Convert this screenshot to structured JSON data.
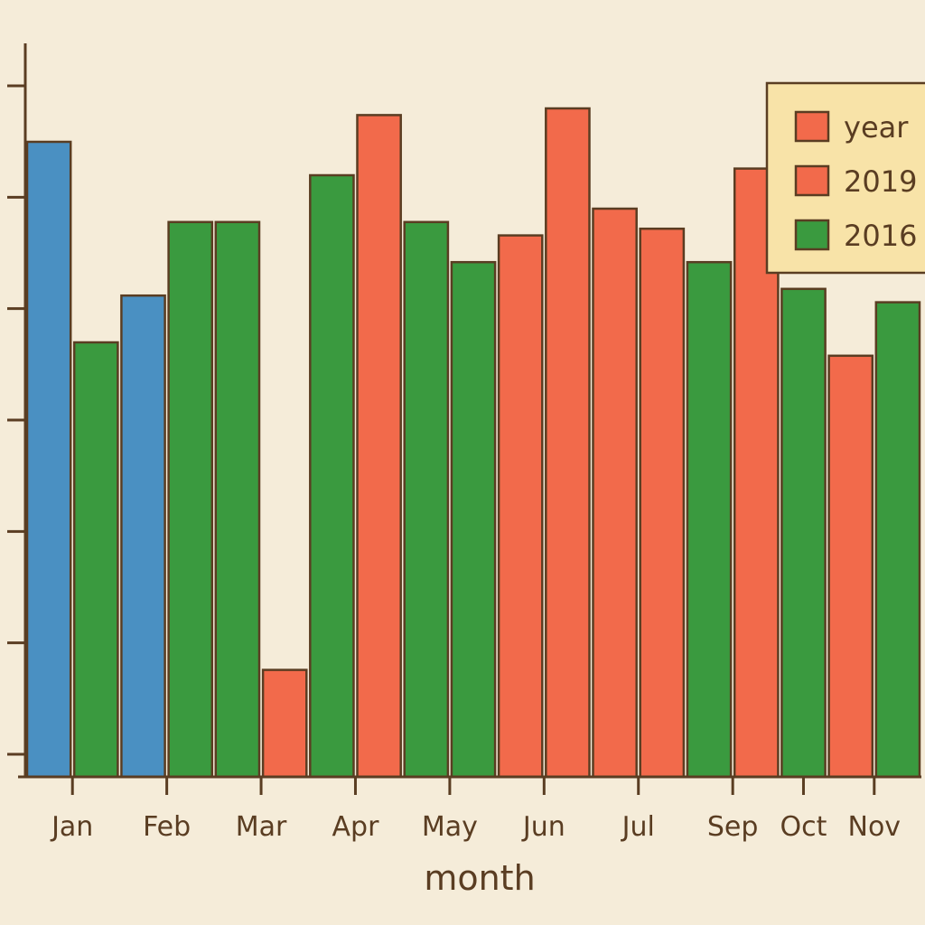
{
  "chart_data": {
    "type": "bar",
    "title": "",
    "xlabel": "month",
    "ylabel": "",
    "ylim": [
      0,
      100
    ],
    "grid": false,
    "legend": {
      "placement": "top-right",
      "title": "year",
      "entries": [
        {
          "label": "2019",
          "color": "#f26a4b"
        },
        {
          "label": "2016",
          "color": "#3a9a3f"
        }
      ]
    },
    "colors": {
      "blue": "#4a90c2",
      "red": "#f26a4b",
      "green": "#3a9a3f",
      "outline": "#5a3d22"
    },
    "categories": [
      "Jan",
      "Feb",
      "Mar",
      "Apr",
      "May",
      "Jun",
      "Jul",
      "Sep",
      "Oct",
      "Nov"
    ],
    "bars": [
      {
        "category": "Jan",
        "value": 95,
        "color": "blue"
      },
      {
        "category": "Jan",
        "value": 65,
        "color": "green"
      },
      {
        "category": "Feb",
        "value": 72,
        "color": "blue"
      },
      {
        "category": "Feb",
        "value": 83,
        "color": "green"
      },
      {
        "category": "Mar",
        "value": 83,
        "color": "green"
      },
      {
        "category": "Mar",
        "value": 16,
        "color": "red"
      },
      {
        "category": "Apr",
        "value": 90,
        "color": "green"
      },
      {
        "category": "Apr",
        "value": 99,
        "color": "red"
      },
      {
        "category": "May",
        "value": 83,
        "color": "green"
      },
      {
        "category": "May",
        "value": 77,
        "color": "green"
      },
      {
        "category": "Jun",
        "value": 81,
        "color": "red"
      },
      {
        "category": "Jun",
        "value": 100,
        "color": "red"
      },
      {
        "category": "Jul",
        "value": 85,
        "color": "red"
      },
      {
        "category": "Jul",
        "value": 82,
        "color": "red"
      },
      {
        "category": "Sep",
        "value": 77,
        "color": "green"
      },
      {
        "category": "Sep",
        "value": 91,
        "color": "red"
      },
      {
        "category": "Oct",
        "value": 73,
        "color": "green"
      },
      {
        "category": "Nov",
        "value": 63,
        "color": "red"
      },
      {
        "category": "Nov",
        "value": 71,
        "color": "green"
      }
    ]
  }
}
